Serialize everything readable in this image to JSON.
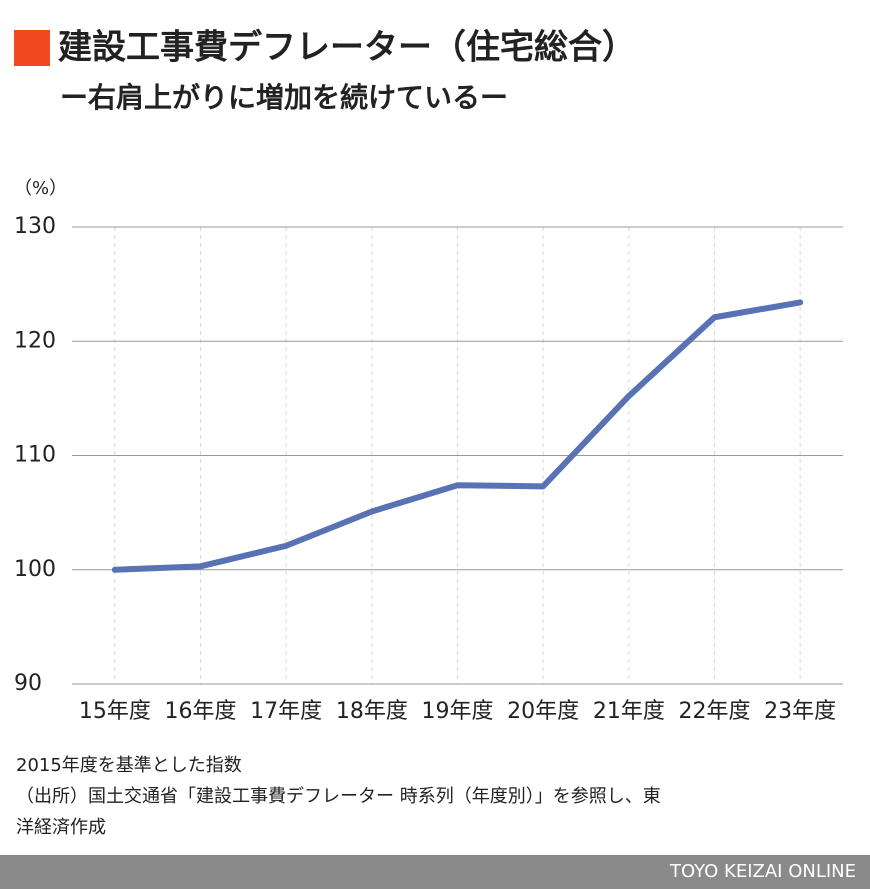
{
  "chart_data": {
    "type": "line",
    "title": "建設工事費デフレーター（住宅総合）",
    "subtitle": "ー右肩上がりに増加を続けているー",
    "y_unit": "（%）",
    "categories": [
      "15年度",
      "16年度",
      "17年度",
      "18年度",
      "19年度",
      "20年度",
      "21年度",
      "22年度",
      "23年度"
    ],
    "series": [
      {
        "name": "建設工事費デフレーター（住宅総合）",
        "color": "#5872b4",
        "values": [
          100.0,
          100.3,
          102.1,
          105.1,
          107.4,
          107.3,
          115.2,
          122.1,
          123.4
        ]
      }
    ],
    "ylim": [
      90,
      130
    ],
    "yticks": [
      90,
      100,
      110,
      120,
      130
    ],
    "grid": true,
    "notes": [
      "2015年度を基準とした指数",
      "（出所）国土交通省「建設工事費デフレーター 時系列（年度別）」を参照し、東",
      "洋経済作成"
    ],
    "credit": "TOYO KEIZAI ONLINE"
  }
}
